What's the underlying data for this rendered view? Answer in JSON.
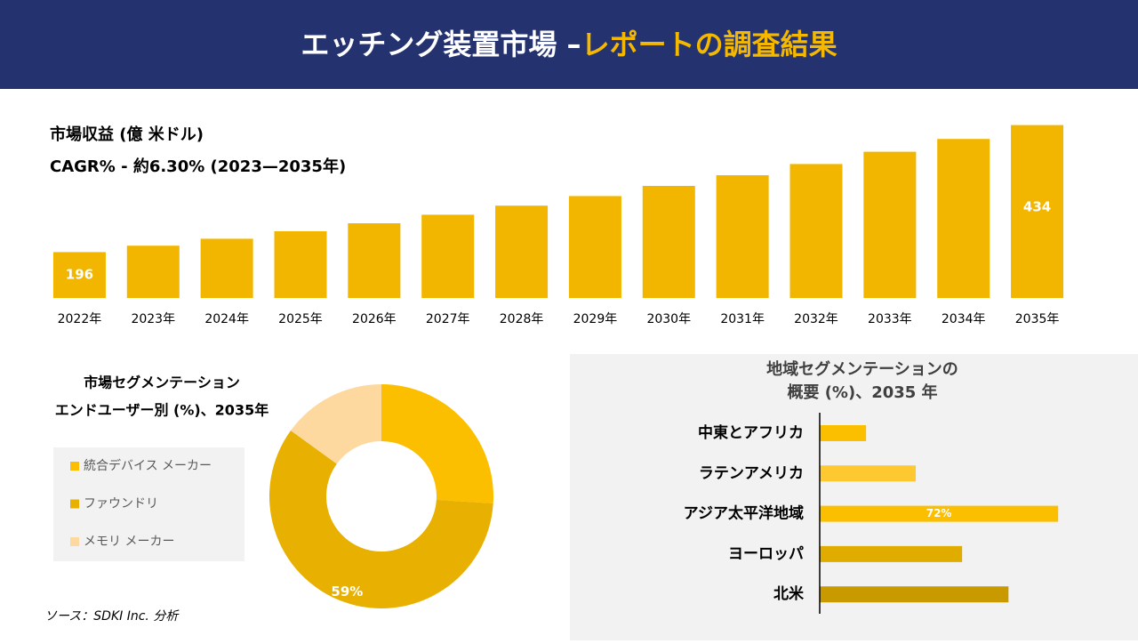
{
  "header": {
    "title": "エッチング装置市場 –",
    "title_highlight": "レポートの調査結果"
  },
  "chart_data": [
    {
      "type": "bar",
      "title": "市場収益 (億 米ドル)",
      "subtitle": "CAGR% - 約6.30% (2023—2035年)",
      "categories": [
        "2022年",
        "2023年",
        "2024年",
        "2025年",
        "2026年",
        "2027年",
        "2028年",
        "2029年",
        "2030年",
        "2031年",
        "2032年",
        "2033年",
        "2034年",
        "2035年"
      ],
      "values": [
        196,
        208,
        221,
        235,
        250,
        266,
        283,
        301,
        320,
        340,
        361,
        384,
        408,
        434
      ],
      "value_labels": [
        "196",
        null,
        null,
        null,
        null,
        null,
        null,
        null,
        null,
        null,
        null,
        null,
        null,
        "434"
      ],
      "color": "#f2b600",
      "ylim": [
        110,
        450
      ],
      "grid": false
    },
    {
      "type": "donut",
      "title": "市場セグメンテーション",
      "subtitle": "エンドユーザー別 (%)、2035年",
      "categories": [
        "統合デバイス メーカー",
        "ファウンドリ",
        "メモリ メーカー"
      ],
      "values": [
        26,
        59,
        15
      ],
      "value_labels": [
        null,
        "59%",
        null
      ],
      "colors": [
        "#fbbf00",
        "#e8b000",
        "#fdd9a0"
      ]
    },
    {
      "type": "hbar",
      "title": "地域セグメンテーションの",
      "subtitle": "概要 (%)、2035 年",
      "categories": [
        "中東とアフリカ",
        "ラテンアメリカ",
        "アジア太平洋地域",
        "ヨーロッパ",
        "北米"
      ],
      "values": [
        14,
        29,
        72,
        43,
        57
      ],
      "value_labels": [
        null,
        null,
        "72%",
        null,
        null
      ],
      "colors": [
        "#fbbf00",
        "#fdc830",
        "#fbbf00",
        "#e0ac00",
        "#c99a00"
      ],
      "xlim": [
        0,
        80
      ]
    }
  ],
  "source": "ソース：SDKI Inc. 分析"
}
